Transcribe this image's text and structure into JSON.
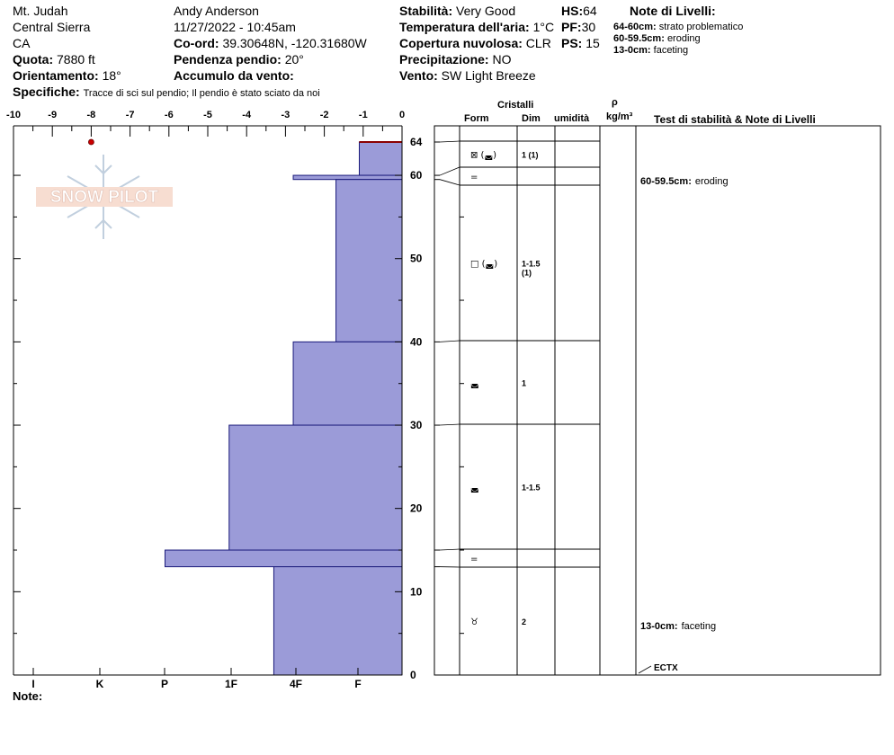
{
  "header": {
    "location": "Mt. Judah",
    "range": "Central Sierra",
    "state": "CA",
    "elevation_label": "Quota:",
    "elevation": "7880 ft",
    "aspect_label": "Orientamento:",
    "aspect": "18°",
    "observer": "Andy Anderson",
    "datetime": "11/27/2022 - 10:45am",
    "coord_label": "Co-ord:",
    "coord": "39.30648N, -120.31680W",
    "slope_label": "Pendenza pendio:",
    "slope": "20°",
    "wind_loading_label": "Accumulo da vento:",
    "wind_loading": "",
    "stability_label": "Stabilità:",
    "stability": "Very Good",
    "air_temp_label": "Temperatura dell'aria:",
    "air_temp": "1°C",
    "sky_label": "Copertura nuvolosa:",
    "sky": "CLR",
    "precip_label": "Precipitazione:",
    "precip": "NO",
    "wind_label": "Vento:",
    "wind": "SW Light Breeze",
    "hs_label": "HS:",
    "hs": "64",
    "pf_label": "PF:",
    "pf": "30",
    "ps_label": "PS:",
    "ps": "15",
    "specifics_label": "Specifiche:",
    "specifics": "Tracce di sci sul pendio;  Il pendio è stato sciato da noi"
  },
  "layer_notes": {
    "title": "Note di Livelli:",
    "items": [
      {
        "range": "64-60cm:",
        "text": "strato problematico"
      },
      {
        "range": "60-59.5cm:",
        "text": "eroding"
      },
      {
        "range": "13-0cm:",
        "text": "faceting"
      }
    ]
  },
  "table_headers": {
    "crystals": "Cristalli",
    "form": "Form",
    "size": "Dim",
    "moisture": "umidità",
    "density_symbol": "ρ",
    "density_unit": "kg/m³",
    "tests": "Test di stabilità & Note di Livelli"
  },
  "footer": {
    "note_label": "Note:",
    "note": ""
  },
  "logo_text": "SNOW PILOT",
  "colors": {
    "layer_fill": "#9b9bd8",
    "layer_stroke": "#1a1a7a",
    "top_line": "#8b0000",
    "temp_point": "#cc0000"
  },
  "chart_data": {
    "type": "snow_profile",
    "temperature_axis": {
      "min": -10,
      "max": 0,
      "ticks": [
        -10,
        -9,
        -8,
        -7,
        -6,
        -5,
        -4,
        -3,
        -2,
        -1,
        0
      ]
    },
    "height_axis": {
      "min": 0,
      "max": 64,
      "ticks": [
        0,
        10,
        20,
        30,
        40,
        50,
        60,
        64
      ]
    },
    "hardness_labels": [
      "I",
      "K",
      "P",
      "1F",
      "4F",
      "F"
    ],
    "temperature_points": [
      {
        "temp": -8,
        "height": 64
      }
    ],
    "layers": [
      {
        "top": 64,
        "bottom": 60,
        "hardness_temp": -1.1,
        "form": "⊠ (◛)",
        "size": "1 (1)",
        "note": ""
      },
      {
        "top": 60,
        "bottom": 59.5,
        "hardness_temp": -2.8,
        "form": "=",
        "size": "",
        "note": "60-59.5cm:  eroding"
      },
      {
        "top": 59.5,
        "bottom": 40,
        "hardness_temp": -1.7,
        "form": "□ (◛)",
        "size": "1-1.5 (1)",
        "note": ""
      },
      {
        "top": 40,
        "bottom": 30,
        "hardness_temp": -2.8,
        "form": "◛",
        "size": "1",
        "note": ""
      },
      {
        "top": 30,
        "bottom": 15,
        "hardness_temp": -4.45,
        "form": "◛",
        "size": "1-1.5",
        "note": ""
      },
      {
        "top": 15,
        "bottom": 13,
        "hardness_temp": -6.1,
        "form": "=",
        "size": "",
        "note": ""
      },
      {
        "top": 13,
        "bottom": 0,
        "hardness_temp": -3.3,
        "form": "♉",
        "size": "2",
        "note": "13-0cm:  faceting"
      }
    ],
    "stability_tests": [
      {
        "height": 0,
        "label": "ECTX"
      }
    ]
  }
}
